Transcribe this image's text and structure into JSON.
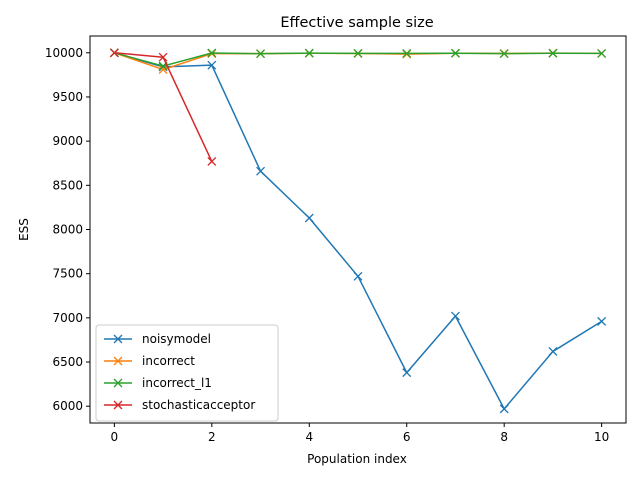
{
  "chart_data": {
    "type": "line",
    "title": "Effective sample size",
    "xlabel": "Population index",
    "ylabel": "ESS",
    "xlim": [
      -0.5,
      10.5
    ],
    "ylim": [
      5810,
      10190
    ],
    "x_ticks": [
      0,
      2,
      4,
      6,
      8,
      10
    ],
    "y_ticks": [
      6000,
      6500,
      7000,
      7500,
      8000,
      8500,
      9000,
      9500,
      10000
    ],
    "grid": false,
    "legend_position": "lower-left",
    "marker": "x",
    "series": [
      {
        "name": "noisymodel",
        "color": "#1f77b4",
        "x": [
          0,
          1,
          2,
          3,
          4,
          5,
          6,
          7,
          8,
          9,
          10
        ],
        "values": [
          10000,
          9840,
          9860,
          8660,
          8130,
          7470,
          6380,
          7020,
          5970,
          6620,
          6960
        ]
      },
      {
        "name": "incorrect",
        "color": "#ff7f0e",
        "x": [
          0,
          1,
          2,
          3,
          4,
          5,
          6,
          7,
          8,
          9,
          10
        ],
        "values": [
          10000,
          9810,
          9990,
          9990,
          9995,
          9992,
          9985,
          9995,
          9993,
          9996,
          9993
        ]
      },
      {
        "name": "incorrect_l1",
        "color": "#2ca02c",
        "x": [
          0,
          1,
          2,
          3,
          4,
          5,
          6,
          7,
          8,
          9,
          10
        ],
        "values": [
          10000,
          9850,
          9998,
          9990,
          9996,
          9994,
          9993,
          9995,
          9990,
          9995,
          9993
        ]
      },
      {
        "name": "stochasticacceptor",
        "color": "#d62728",
        "x": [
          0,
          1,
          2
        ],
        "values": [
          10000,
          9950,
          8770
        ]
      }
    ]
  }
}
